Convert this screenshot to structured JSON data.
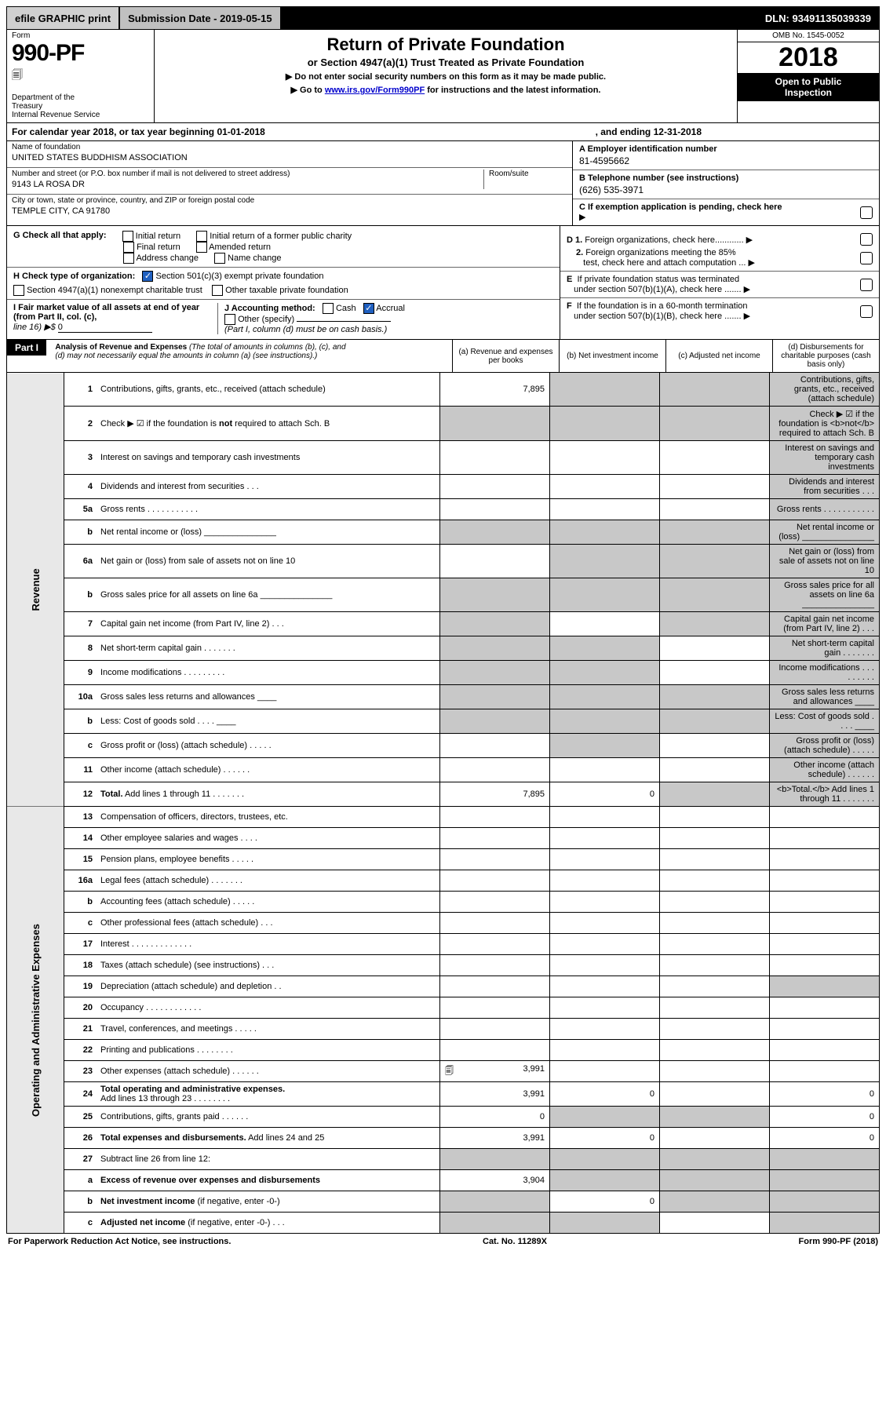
{
  "topbar": {
    "efile": "efile GRAPHIC print",
    "submission_label": "Submission Date - 2019-05-15",
    "dln": "DLN: 93491135039339"
  },
  "header": {
    "form_label": "Form",
    "form_number": "990-PF",
    "dept1": "Department of the",
    "dept2": "Treasury",
    "dept3": "Internal Revenue Service",
    "title": "Return of Private Foundation",
    "subtitle": "or Section 4947(a)(1) Trust Treated as Private Foundation",
    "instr1": "▶ Do not enter social security numbers on this form as it may be made public.",
    "instr2_pre": "▶ Go to ",
    "instr2_link": "www.irs.gov/Form990PF",
    "instr2_post": " for instructions and the latest information.",
    "omb": "OMB No. 1545-0052",
    "year": "2018",
    "open_public1": "Open to Public",
    "open_public2": "Inspection"
  },
  "calyear": {
    "pre": "For calendar year 2018, or tax year beginning ",
    "begin": "01-01-2018",
    "mid": ", and ending ",
    "end": "12-31-2018"
  },
  "entity": {
    "name_label": "Name of foundation",
    "name": "UNITED STATES BUDDHISM ASSOCIATION",
    "addr_label": "Number and street (or P.O. box number if mail is not delivered to street address)",
    "room_label": "Room/suite",
    "addr": "9143 LA ROSA DR",
    "city_label": "City or town, state or province, country, and ZIP or foreign postal code",
    "city": "TEMPLE CITY, CA  91780",
    "A_label": "A Employer identification number",
    "A_val": "81-4595662",
    "B_label": "B Telephone number (see instructions)",
    "B_val": "(626) 535-3971",
    "C_label": "C If exemption application is pending, check here"
  },
  "checks": {
    "G_label": "G Check all that apply:",
    "G_opts": [
      "Initial return",
      "Initial return of a former public charity",
      "Final return",
      "Amended return",
      "Address change",
      "Name change"
    ],
    "H_label": "H Check type of organization:",
    "H_opt1": "Section 501(c)(3) exempt private foundation",
    "H_opt2": "Section 4947(a)(1) nonexempt charitable trust",
    "H_opt3": "Other taxable private foundation",
    "I_label": "I Fair market value of all assets at end of year (from Part II, col. (c),",
    "I_line16": "line 16) ▶$ ",
    "I_val": "0",
    "J_label": "J Accounting method:",
    "J_cash": "Cash",
    "J_accrual": "Accrual",
    "J_other": "Other (specify)",
    "J_note": "(Part I, column (d) must be on cash basis.)",
    "D1": "D 1. Foreign organizations, check here............",
    "D2a": "2. Foreign organizations meeting the 85%",
    "D2b": "test, check here and attach computation ...",
    "E1": "E  If private foundation status was terminated",
    "E2": "under section 507(b)(1)(A), check here .......",
    "F1": "F  If the foundation is in a 60-month termination",
    "F2": "under section 507(b)(1)(B), check here .......  ▶"
  },
  "part1": {
    "label": "Part I",
    "title": "Analysis of Revenue and Expenses",
    "title_note": " (The total of amounts in columns (b), (c), and (d) may not necessarily equal the amounts in column (a) (see instructions).)",
    "col_a": "(a)    Revenue and expenses per books",
    "col_b": "(b)   Net investment income",
    "col_c": "(c)   Adjusted net income",
    "col_d": "(d)   Disbursements for charitable purposes (cash basis only)"
  },
  "side_labels": {
    "revenue": "Revenue",
    "expenses": "Operating and Administrative Expenses"
  },
  "rows": [
    {
      "n": "1",
      "d": "Contributions, gifts, grants, etc., received (attach schedule)",
      "a": "7,895",
      "b_sh": true,
      "c_sh": true,
      "d_sh": true
    },
    {
      "n": "2",
      "d": "Check ▶ ☑ if the foundation is <b>not</b> required to attach Sch. B",
      "a_sh": true,
      "b_sh": true,
      "c_sh": true,
      "d_sh": true
    },
    {
      "n": "3",
      "d": "Interest on savings and temporary cash investments",
      "d_sh": true
    },
    {
      "n": "4",
      "d": "Dividends and interest from securities   .   .   .",
      "d_sh": true
    },
    {
      "n": "5a",
      "d": "Gross rents   .   .   .   .   .   .   .   .   .   .   .",
      "d_sh": true
    },
    {
      "n": "b",
      "d": "Net rental income or (loss)  _______________",
      "a_sh": true,
      "b_sh": true,
      "c_sh": true,
      "d_sh": true
    },
    {
      "n": "6a",
      "d": "Net gain or (loss) from sale of assets not on line 10",
      "b_sh": true,
      "c_sh": true,
      "d_sh": true
    },
    {
      "n": "b",
      "d": "Gross sales price for all assets on line 6a  _______________",
      "a_sh": true,
      "b_sh": true,
      "c_sh": true,
      "d_sh": true
    },
    {
      "n": "7",
      "d": "Capital gain net income (from Part IV, line 2)   .   .   .",
      "a_sh": true,
      "c_sh": true,
      "d_sh": true
    },
    {
      "n": "8",
      "d": "Net short-term capital gain   .   .   .   .   .   .   .",
      "a_sh": true,
      "b_sh": true,
      "d_sh": true
    },
    {
      "n": "9",
      "d": "Income modifications   .   .   .   .   .   .   .   .   .",
      "a_sh": true,
      "b_sh": true,
      "d_sh": true
    },
    {
      "n": "10a",
      "d": "Gross sales less returns and allowances  ____",
      "a_sh": true,
      "b_sh": true,
      "c_sh": true,
      "d_sh": true
    },
    {
      "n": "b",
      "d": "Less: Cost of goods sold   .   .   .   .  ____",
      "a_sh": true,
      "b_sh": true,
      "c_sh": true,
      "d_sh": true
    },
    {
      "n": "c",
      "d": "Gross profit or (loss) (attach schedule)   .   .   .   .   .",
      "b_sh": true,
      "d_sh": true
    },
    {
      "n": "11",
      "d": "Other income (attach schedule)   .   .   .   .   .   .",
      "d_sh": true
    },
    {
      "n": "12",
      "d": "<b>Total.</b> Add lines 1 through 11   .   .   .   .   .   .   .",
      "a": "7,895",
      "b": "0",
      "c_sh": true,
      "d_sh": true
    }
  ],
  "exp_rows": [
    {
      "n": "13",
      "d": "Compensation of officers, directors, trustees, etc."
    },
    {
      "n": "14",
      "d": "Other employee salaries and wages   .   .   .   ."
    },
    {
      "n": "15",
      "d": "Pension plans, employee benefits   .   .   .   .   ."
    },
    {
      "n": "16a",
      "d": "Legal fees (attach schedule)   .   .   .   .   .   .   ."
    },
    {
      "n": "b",
      "d": "Accounting fees (attach schedule)   .   .   .   .   ."
    },
    {
      "n": "c",
      "d": "Other professional fees (attach schedule)   .   .   ."
    },
    {
      "n": "17",
      "d": "Interest   .   .   .   .   .   .   .   .   .   .   .   .   ."
    },
    {
      "n": "18",
      "d": "Taxes (attach schedule) (see instructions)   .   .   ."
    },
    {
      "n": "19",
      "d": "Depreciation (attach schedule) and depletion   .   .",
      "d_sh": true
    },
    {
      "n": "20",
      "d": "Occupancy   .   .   .   .   .   .   .   .   .   .   .   ."
    },
    {
      "n": "21",
      "d": "Travel, conferences, and meetings   .   .   .   .   ."
    },
    {
      "n": "22",
      "d": "Printing and publications   .   .   .   .   .   .   .   ."
    },
    {
      "n": "23",
      "d": "Other expenses (attach schedule)   .   .   .   .   .   .",
      "a": "3,991",
      "icon": true
    },
    {
      "n": "24",
      "d": "<b>Total operating and administrative expenses.</b><br>Add lines 13 through 23   .   .   .   .   .   .   .   .",
      "a": "3,991",
      "b": "0",
      "c": "",
      "dd": "0"
    },
    {
      "n": "25",
      "d": "Contributions, gifts, grants paid   .   .   .   .   .   .",
      "a": "0",
      "b_sh": true,
      "c_sh": true,
      "dd": "0"
    },
    {
      "n": "26",
      "d": "<b>Total expenses and disbursements.</b> Add lines 24 and 25",
      "a": "3,991",
      "b": "0",
      "c": "",
      "dd": "0"
    },
    {
      "n": "27",
      "d": "Subtract line 26 from line 12:",
      "a_sh": true,
      "b_sh": true,
      "c_sh": true,
      "d_sh": true
    },
    {
      "n": "a",
      "d": "<b>Excess of revenue over expenses and disbursements</b>",
      "a": "3,904",
      "b_sh": true,
      "c_sh": true,
      "d_sh": true
    },
    {
      "n": "b",
      "d": "<b>Net investment income</b> (if negative, enter -0-)",
      "a_sh": true,
      "b": "0",
      "c_sh": true,
      "d_sh": true
    },
    {
      "n": "c",
      "d": "<b>Adjusted net income</b> (if negative, enter -0-)   .   .   .",
      "a_sh": true,
      "b_sh": true,
      "d_sh": true
    }
  ],
  "footer": {
    "left": "For Paperwork Reduction Act Notice, see instructions.",
    "mid": "Cat. No. 11289X",
    "right": "Form 990-PF (2018)"
  },
  "colors": {
    "shaded": "#c8c8c8",
    "black": "#000000",
    "link": "#0000cc",
    "checked": "#2060c0"
  }
}
